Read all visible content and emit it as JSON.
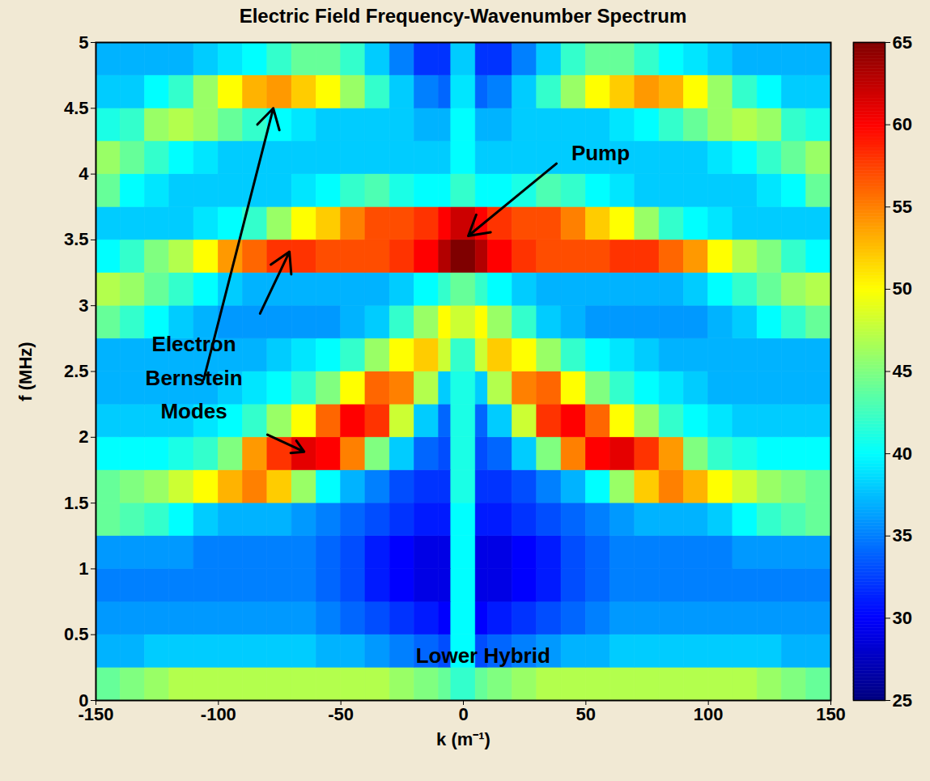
{
  "chart_data": {
    "type": "heatmap",
    "title": "Electric Field Frequency-Wavenumber Spectrum",
    "x_label": "k (m⁻¹)",
    "y_label": "f (MHz)",
    "xlim": [
      -150,
      150
    ],
    "ylim": [
      0,
      5
    ],
    "xticks": [
      -150,
      -100,
      -50,
      0,
      50,
      100,
      150
    ],
    "yticks": [
      0,
      0.5,
      1,
      1.5,
      2,
      2.5,
      3,
      3.5,
      4,
      4.5,
      5
    ],
    "x_bins": [
      -150,
      -140,
      -130,
      -120,
      -110,
      -100,
      -90,
      -80,
      -70,
      -60,
      -50,
      -40,
      -30,
      -20,
      -10,
      -5,
      5,
      10,
      20,
      30,
      40,
      50,
      60,
      70,
      80,
      90,
      100,
      110,
      120,
      130,
      140,
      150
    ],
    "y_bins": [
      0,
      0.25,
      0.5,
      0.75,
      1,
      1.25,
      1.5,
      1.75,
      2,
      2.25,
      2.5,
      2.75,
      3,
      3.25,
      3.5,
      3.75,
      4,
      4.25,
      4.5,
      4.75,
      5
    ],
    "values": [
      [
        44,
        45,
        46,
        47,
        47,
        47,
        47,
        47,
        47,
        47,
        47,
        47,
        46,
        45,
        44,
        42,
        44,
        45,
        46,
        47,
        47,
        47,
        47,
        47,
        47,
        47,
        47,
        47,
        46,
        45,
        44
      ],
      [
        37,
        37,
        38,
        38,
        38,
        38,
        38,
        38,
        38,
        37,
        37,
        36,
        35,
        34,
        33,
        40,
        33,
        34,
        35,
        36,
        37,
        37,
        38,
        38,
        38,
        38,
        38,
        38,
        38,
        37,
        37
      ],
      [
        36,
        36,
        36,
        36,
        36,
        36,
        36,
        36,
        36,
        35,
        34,
        33,
        32,
        31,
        30,
        40,
        30,
        31,
        32,
        33,
        34,
        35,
        36,
        36,
        36,
        36,
        36,
        36,
        36,
        36,
        36
      ],
      [
        35,
        35,
        35,
        35,
        35,
        35,
        35,
        35,
        35,
        34,
        33,
        31,
        30,
        29,
        29,
        40,
        29,
        29,
        30,
        31,
        33,
        34,
        35,
        35,
        35,
        35,
        35,
        35,
        35,
        35,
        35
      ],
      [
        36,
        36,
        36,
        36,
        35,
        35,
        35,
        35,
        35,
        34,
        33,
        31,
        30,
        29,
        29,
        40,
        29,
        29,
        30,
        31,
        33,
        34,
        35,
        35,
        35,
        35,
        35,
        36,
        36,
        36,
        36
      ],
      [
        44,
        43,
        42,
        40,
        38,
        37,
        37,
        37,
        36,
        35,
        34,
        33,
        32,
        31,
        31,
        40,
        31,
        31,
        32,
        33,
        34,
        35,
        36,
        37,
        37,
        37,
        38,
        40,
        42,
        43,
        44
      ],
      [
        44,
        45,
        46,
        48,
        50,
        53,
        55,
        52,
        46,
        40,
        37,
        35,
        33,
        32,
        32,
        41,
        32,
        32,
        33,
        35,
        37,
        40,
        46,
        52,
        55,
        53,
        50,
        48,
        46,
        45,
        44
      ],
      [
        40,
        40,
        40,
        41,
        42,
        45,
        54,
        58,
        61,
        60,
        55,
        45,
        38,
        34,
        33,
        41,
        33,
        34,
        38,
        45,
        55,
        60,
        61,
        58,
        54,
        45,
        42,
        41,
        40,
        40,
        40
      ],
      [
        38,
        38,
        38,
        38,
        39,
        40,
        42,
        46,
        50,
        56,
        60,
        58,
        48,
        38,
        34,
        41,
        34,
        38,
        48,
        58,
        60,
        56,
        50,
        46,
        42,
        40,
        39,
        38,
        38,
        38,
        38
      ],
      [
        37,
        37,
        37,
        37,
        37,
        38,
        39,
        40,
        42,
        45,
        50,
        56,
        55,
        47,
        38,
        41,
        38,
        47,
        55,
        56,
        50,
        45,
        42,
        40,
        39,
        38,
        37,
        37,
        37,
        37,
        37
      ],
      [
        37,
        37,
        37,
        37,
        37,
        37,
        37,
        38,
        39,
        40,
        42,
        46,
        50,
        52,
        48,
        42,
        48,
        52,
        50,
        46,
        42,
        40,
        39,
        38,
        37,
        37,
        37,
        37,
        37,
        37,
        37
      ],
      [
        44,
        42,
        40,
        38,
        37,
        36,
        36,
        36,
        36,
        36,
        37,
        38,
        42,
        46,
        50,
        48,
        50,
        46,
        42,
        38,
        37,
        36,
        36,
        36,
        36,
        36,
        37,
        38,
        40,
        42,
        44
      ],
      [
        47,
        46,
        44,
        42,
        40,
        38,
        37,
        37,
        37,
        37,
        37,
        37,
        38,
        40,
        42,
        44,
        42,
        40,
        38,
        37,
        37,
        37,
        37,
        37,
        37,
        38,
        40,
        42,
        44,
        46,
        47
      ],
      [
        40,
        42,
        45,
        47,
        50,
        54,
        56,
        58,
        58,
        57,
        57,
        57,
        58,
        60,
        63,
        65,
        63,
        60,
        58,
        57,
        57,
        57,
        58,
        58,
        56,
        54,
        50,
        47,
        45,
        42,
        40
      ],
      [
        38,
        38,
        38,
        38,
        39,
        40,
        42,
        46,
        50,
        52,
        55,
        57,
        57,
        58,
        60,
        62,
        60,
        58,
        57,
        57,
        55,
        52,
        50,
        46,
        42,
        40,
        39,
        38,
        38,
        38,
        38
      ],
      [
        44,
        40,
        39,
        38,
        38,
        38,
        38,
        38,
        39,
        40,
        42,
        43,
        41,
        40,
        40,
        42,
        40,
        40,
        41,
        43,
        42,
        40,
        39,
        38,
        38,
        38,
        38,
        38,
        39,
        40,
        44
      ],
      [
        46,
        44,
        42,
        40,
        39,
        38,
        38,
        38,
        38,
        38,
        38,
        38,
        38,
        38,
        38,
        40,
        38,
        38,
        38,
        38,
        38,
        38,
        38,
        38,
        38,
        38,
        39,
        40,
        42,
        44,
        46
      ],
      [
        41,
        42,
        46,
        47,
        46,
        44,
        42,
        40,
        39,
        38,
        38,
        38,
        38,
        37,
        37,
        40,
        37,
        37,
        38,
        38,
        38,
        38,
        39,
        40,
        42,
        44,
        46,
        47,
        46,
        42,
        41
      ],
      [
        38,
        38,
        40,
        42,
        46,
        50,
        53,
        54,
        52,
        50,
        46,
        42,
        38,
        35,
        34,
        39,
        34,
        35,
        38,
        42,
        46,
        50,
        52,
        54,
        53,
        50,
        46,
        42,
        40,
        38,
        38
      ],
      [
        37,
        37,
        37,
        37,
        38,
        39,
        40,
        42,
        44,
        44,
        42,
        38,
        35,
        32,
        32,
        38,
        32,
        32,
        35,
        38,
        42,
        44,
        44,
        42,
        40,
        39,
        38,
        37,
        37,
        37,
        37
      ]
    ],
    "colorbar": {
      "range": [
        25,
        65
      ],
      "ticks": [
        25,
        30,
        35,
        40,
        45,
        50,
        55,
        60,
        65
      ]
    },
    "annotations": [
      {
        "text": "Pump",
        "x": 56,
        "y": 4.19,
        "box": false,
        "arrows": [
          {
            "from": [
              38,
              4.08
            ],
            "to": [
              2,
              3.53
            ]
          }
        ]
      },
      {
        "text": "Electron\nBernstein\nModes",
        "x": -110,
        "y": 2.48,
        "box": true,
        "arrows": [
          {
            "from": [
              -106,
              2.44
            ],
            "to": [
              -77.6,
              4.5
            ]
          },
          {
            "from": [
              -83,
              2.94
            ],
            "to": [
              -71,
              3.41
            ]
          },
          {
            "from": [
              -80,
              2.02
            ],
            "to": [
              -65,
              1.89
            ]
          }
        ]
      },
      {
        "text": "Lower Hybrid",
        "x": 8,
        "y": 0.37,
        "box": true,
        "arrows": []
      }
    ]
  }
}
